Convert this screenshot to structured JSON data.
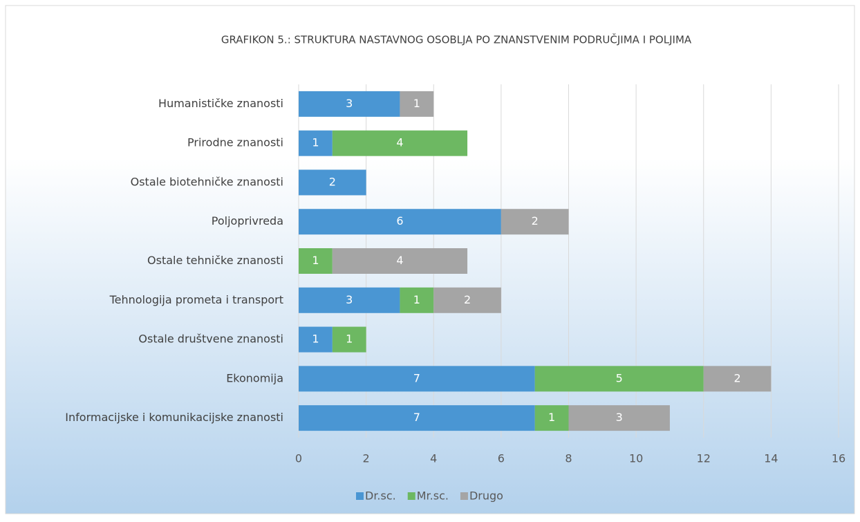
{
  "chart_data": {
    "type": "stacked_bar_horizontal",
    "title": "GRAFIKON 5.: STRUKTURA NASTAVNOG OSOBLJA PO ZNANSTVENIM PODRUČJIMA I POLJIMA",
    "categories": [
      "Humanističke znanosti",
      "Prirodne znanosti",
      "Ostale biotehničke znanosti",
      "Poljoprivreda",
      "Ostale tehničke znanosti",
      "Tehnologija prometa i transport",
      "Ostale društvene znanosti",
      "Ekonomija",
      "Informacijske i komunikacijske znanosti"
    ],
    "series": [
      {
        "name": "Dr.sc.",
        "color": "#4a96d3",
        "values": [
          3,
          1,
          2,
          6,
          null,
          3,
          1,
          7,
          7
        ]
      },
      {
        "name": "Mr.sc.",
        "color": "#6db862",
        "values": [
          null,
          4,
          null,
          null,
          1,
          1,
          1,
          5,
          1
        ]
      },
      {
        "name": "Drugo",
        "color": "#a5a5a5",
        "values": [
          1,
          null,
          null,
          2,
          4,
          2,
          null,
          2,
          3
        ]
      }
    ],
    "xlim": [
      0,
      16
    ],
    "xticks": [
      0,
      2,
      4,
      6,
      8,
      10,
      12,
      14,
      16
    ],
    "grid": true,
    "legend": "bottom"
  }
}
